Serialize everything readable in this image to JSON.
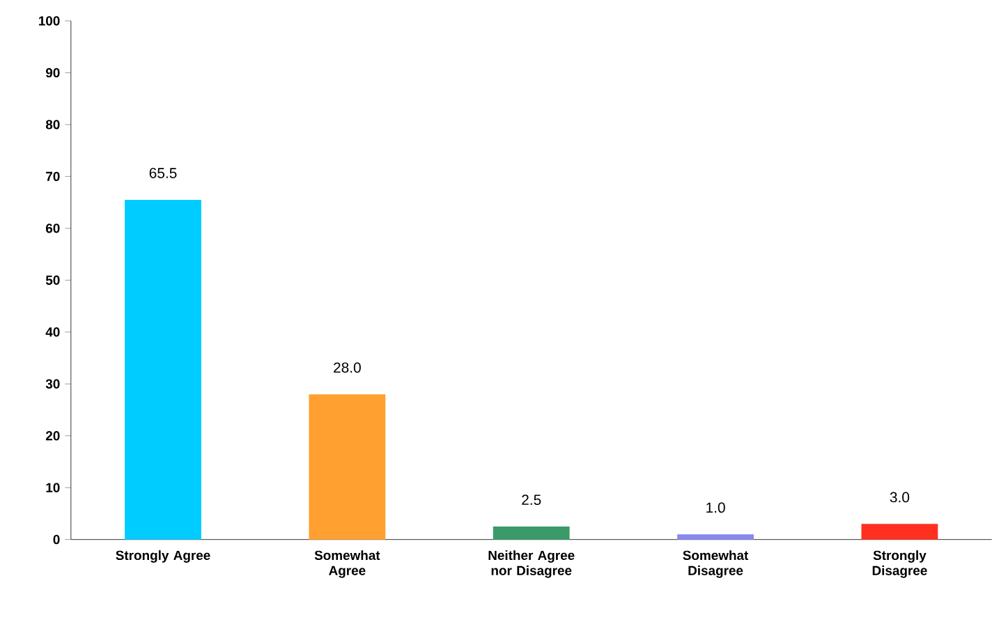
{
  "chart_data": {
    "type": "bar",
    "categories": [
      "Strongly Agree",
      "Somewhat Agree",
      "Neither Agree nor Disagree",
      "Somewhat Disagree",
      "Strongly Disagree"
    ],
    "values": [
      65.5,
      28.0,
      2.5,
      1.0,
      3.0
    ],
    "value_labels": [
      "65.5",
      "28.0",
      "2.5",
      "1.0",
      "3.0"
    ],
    "colors": [
      "#00ccff",
      "#ffa030",
      "#3a9a6a",
      "#8888ee",
      "#ff3020"
    ],
    "ylim": [
      0,
      100
    ],
    "yticks": [
      0,
      10,
      20,
      30,
      40,
      50,
      60,
      70,
      80,
      90,
      100
    ],
    "grid": false
  }
}
